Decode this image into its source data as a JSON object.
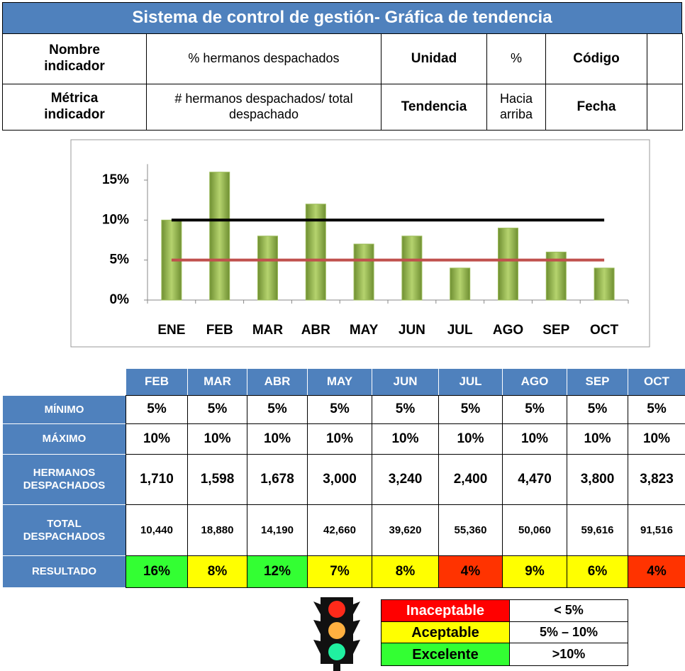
{
  "header": {
    "title": "Sistema de control de gestión- Gráfica de tendencia",
    "rows": [
      [
        "Nombre indicador",
        "% hermanos despachados",
        "Unidad",
        "%",
        "Código"
      ],
      [
        "Métrica indicador",
        "# hermanos despachados/ total despachado",
        "Tendencia",
        "Hacia arriba",
        "Fecha"
      ]
    ]
  },
  "chart_data": {
    "type": "bar",
    "categories": [
      "ENE",
      "FEB",
      "MAR",
      "ABR",
      "MAY",
      "JUN",
      "JUL",
      "AGO",
      "SEP",
      "OCT"
    ],
    "values": [
      10,
      16,
      8,
      12,
      7,
      8,
      4,
      9,
      6,
      4
    ],
    "color": "#9bbb59",
    "reference_lines": [
      {
        "value": 10,
        "color": "#000000"
      },
      {
        "value": 5,
        "color": "#c0504d"
      }
    ],
    "ylim": [
      0,
      17
    ],
    "yticks": [
      {
        "value": 0,
        "label": "0%"
      },
      {
        "value": 5,
        "label": "5%"
      },
      {
        "value": 10,
        "label": "10%"
      },
      {
        "value": 15,
        "label": "15%"
      }
    ],
    "grid": false
  },
  "table": {
    "columns": [
      "FEB",
      "MAR",
      "ABR",
      "MAY",
      "JUN",
      "JUL",
      "AGO",
      "SEP",
      "OCT"
    ],
    "rows": [
      {
        "label": "MÍNIMO",
        "cells": [
          "5%",
          "5%",
          "5%",
          "5%",
          "5%",
          "5%",
          "5%",
          "5%",
          "5%"
        ]
      },
      {
        "label": "MÁXIMO",
        "cells": [
          "10%",
          "10%",
          "10%",
          "10%",
          "10%",
          "10%",
          "10%",
          "10%",
          "10%"
        ]
      },
      {
        "label": "HERMANOS DESPACHADOS",
        "cells": [
          "1,710",
          "1,598",
          "1,678",
          "3,000",
          "3,240",
          "2,400",
          "4,470",
          "3,800",
          "3,823"
        ]
      },
      {
        "label": "TOTAL DESPACHADOS",
        "cells": [
          "10,440",
          "18,880",
          "14,190",
          "42,660",
          "39,620",
          "55,360",
          "50,060",
          "59,616",
          "91,516"
        ]
      },
      {
        "label": "RESULTADO",
        "cells": [
          "16%",
          "8%",
          "12%",
          "7%",
          "8%",
          "4%",
          "9%",
          "6%",
          "4%"
        ],
        "colors": [
          "#33ff33",
          "#ffff00",
          "#33ff33",
          "#ffff00",
          "#ffff00",
          "#ff3300",
          "#ffff00",
          "#ffff00",
          "#ff3300"
        ]
      }
    ]
  },
  "legend": [
    {
      "label": "Inaceptable",
      "range": "< 5%",
      "color": "#ff0000"
    },
    {
      "label": "Aceptable",
      "range": "5% – 10%",
      "color": "#ffff00"
    },
    {
      "label": "Excelente",
      "range": ">10%",
      "color": "#33ff33"
    }
  ]
}
